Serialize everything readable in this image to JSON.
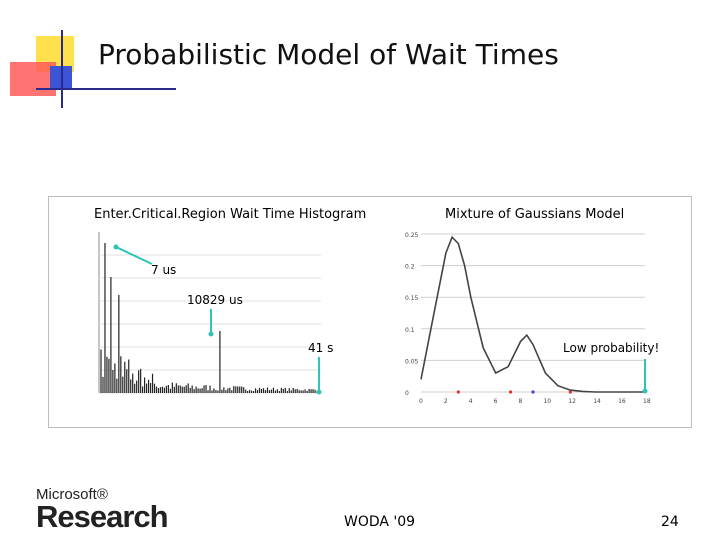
{
  "slide": {
    "title": "Probabilistic Model of Wait Times",
    "footer_center": "WODA '09",
    "page_number": "24"
  },
  "logo": {
    "line1": "Microsoft®",
    "line2": "Research"
  },
  "colors": {
    "accent_yellow": "#ffe14d",
    "accent_red": "#ff5a5a",
    "accent_blue": "#3b55d6",
    "annotation_teal": "#2ec4b6"
  },
  "chart_data": [
    {
      "type": "bar",
      "title": "Enter.Critical.Region Wait Time Histogram",
      "annotations": [
        "7 us",
        "10829 us",
        "41 s"
      ],
      "note": "dense histogram; tall bars near the left, one tall spike mid-axis"
    },
    {
      "type": "line",
      "title": "Mixture of Gaussians Model",
      "ylim": [
        0,
        0.25
      ],
      "y_ticks": [
        "0",
        "0.05",
        "0.1",
        "0.15",
        "0.2",
        "0.25"
      ],
      "xlim": [
        0,
        18
      ],
      "x_ticks": [
        "0",
        "2",
        "4",
        "6",
        "8",
        "10",
        "12",
        "14",
        "16",
        "18"
      ],
      "series": [
        {
          "x": [
            0,
            1,
            2,
            2.5,
            3,
            3.5,
            4,
            5,
            6,
            7,
            7.5,
            8,
            8.5,
            9,
            10,
            11,
            12,
            13,
            14,
            16,
            18
          ],
          "y": [
            0.02,
            0.12,
            0.22,
            0.245,
            0.235,
            0.2,
            0.15,
            0.07,
            0.03,
            0.04,
            0.06,
            0.08,
            0.09,
            0.075,
            0.03,
            0.01,
            0.003,
            0.001,
            0.0,
            0.0,
            0.0
          ]
        }
      ],
      "annotation": "Low probability!"
    }
  ]
}
